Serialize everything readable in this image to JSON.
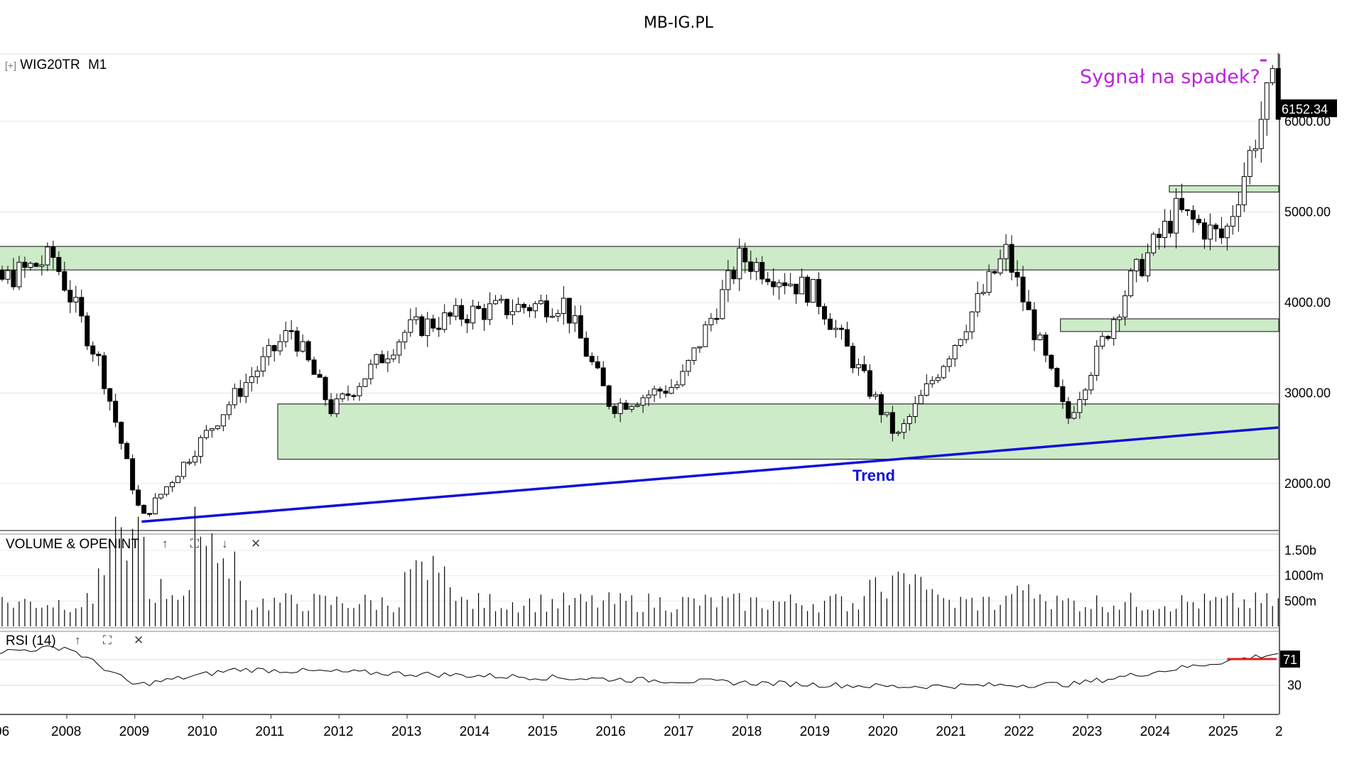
{
  "site_title": "MB-IG.PL",
  "instrument": {
    "symbol": "WIG20TR",
    "timeframe": "M1",
    "expand_label": "[+]"
  },
  "annotations": {
    "signal": "Sygnał na spadek?",
    "trend": "Trend"
  },
  "colors": {
    "up_candle": "#ffffff",
    "down_candle": "#000000",
    "zone_fill": "#cdebc8",
    "trendline": "#1010d8",
    "signal_text": "#bb22dd",
    "rsi_mark": "#e02020"
  },
  "price_axis": {
    "ticks": [
      "2000.00",
      "3000.00",
      "4000.00",
      "5000.00",
      "6000.00"
    ],
    "last_price": "6152.34",
    "range": [
      1550,
      6780
    ]
  },
  "time_axis": {
    "labels": [
      "06",
      "2008",
      "2009",
      "2010",
      "2011",
      "2012",
      "2013",
      "2014",
      "2015",
      "2016",
      "2017",
      "2018",
      "2019",
      "2020",
      "2021",
      "2022",
      "2023",
      "2024",
      "2025",
      "2"
    ]
  },
  "zones": [
    {
      "name": "resistance-zone",
      "from_year": 2006.2,
      "to": "right",
      "low": 4360,
      "high": 4620
    },
    {
      "name": "support-zone",
      "from_year": 2011.1,
      "to": "right",
      "low": 2270,
      "high": 2880
    },
    {
      "name": "mid-zone",
      "from_year": 2022.6,
      "to": "right",
      "low": 3680,
      "high": 3820
    },
    {
      "name": "upper-zone",
      "from_year": 2024.2,
      "to": "right",
      "low": 5220,
      "high": 5290
    }
  ],
  "trendline": {
    "points": [
      [
        2009.1,
        1580
      ],
      [
        2020.2,
        2270
      ],
      [
        2025.8,
        2620
      ]
    ]
  },
  "volume_pane": {
    "title": "VOLUME & OPENINT",
    "buttons": [
      "↑",
      "⛶",
      "↓",
      "✕"
    ],
    "ticks": [
      "1.50b",
      "1000m",
      "500m"
    ],
    "range": [
      0,
      1700
    ]
  },
  "rsi_pane": {
    "title": "RSI (14)",
    "buttons": [
      "↑",
      "⛶",
      "✕"
    ],
    "ticks": [
      "30"
    ],
    "last_value": "71",
    "range": [
      5,
      80
    ]
  },
  "chart_data": {
    "type": "candlestick",
    "symbol": "WIG20TR",
    "timeframe": "M1",
    "series": [
      {
        "name": "WIG20TR",
        "key_closes": {
          "2007.8": 4500,
          "2008.5": 3300,
          "2009.1": 1600,
          "2010.5": 3000,
          "2011.3": 3700,
          "2011.9": 2800,
          "2013.0": 3700,
          "2014.0": 3900,
          "2015.3": 4000,
          "2016.0": 2850,
          "2017.0": 3100,
          "2017.9": 4500,
          "2019.0": 4100,
          "2020.2": 2500,
          "2021.0": 3500,
          "2021.8": 4550,
          "2022.7": 2700,
          "2023.6": 4200,
          "2024.3": 5000,
          "2025.0": 4700,
          "2025.7": 6400,
          "last": 6152.34
        }
      }
    ],
    "volume_key": {
      "2008.8": 1500,
      "2010.2": 1600,
      "2013.3": 1400,
      "2020.0": 1000,
      "2020.4": 1100,
      "2022.1": 900,
      "baseline": 450
    },
    "rsi_key": {
      "2008.0": 90,
      "2009.0": 30,
      "2010.5": 55,
      "2020.2": 28,
      "2022.8": 32,
      "2025.8": 80,
      "last": 71
    },
    "rsi_level_marker": 71
  }
}
